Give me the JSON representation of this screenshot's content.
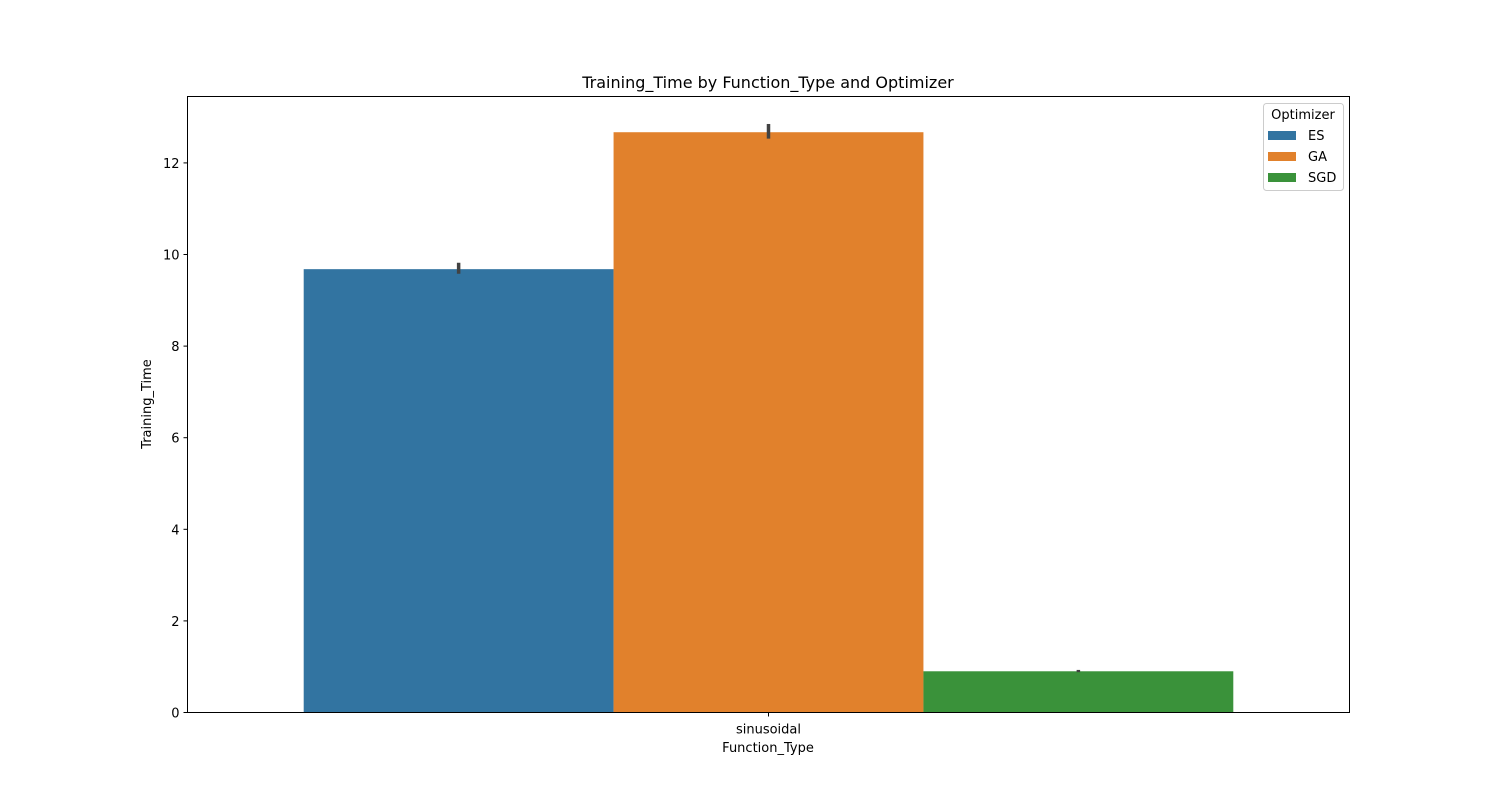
{
  "chart_data": {
    "type": "bar",
    "title": "Training_Time by Function_Type and Optimizer",
    "xlabel": "Function_Type",
    "ylabel": "Training_Time",
    "categories": [
      "sinusoidal"
    ],
    "ylim": [
      0,
      13.45
    ],
    "yticks": [
      0,
      2,
      4,
      6,
      8,
      10,
      12
    ],
    "grid": false,
    "legend": {
      "title": "Optimizer",
      "placement": "top-right"
    },
    "series": [
      {
        "name": "ES",
        "values": [
          9.68
        ],
        "error": [
          [
            9.58,
            9.82
          ]
        ],
        "color": "#3274a1"
      },
      {
        "name": "GA",
        "values": [
          12.67
        ],
        "error": [
          [
            12.53,
            12.85
          ]
        ],
        "color": "#e1812c"
      },
      {
        "name": "SGD",
        "values": [
          0.9
        ],
        "error": [
          [
            0.88,
            0.93
          ]
        ],
        "color": "#3a923a"
      }
    ],
    "errorbar_color": "#424242"
  }
}
